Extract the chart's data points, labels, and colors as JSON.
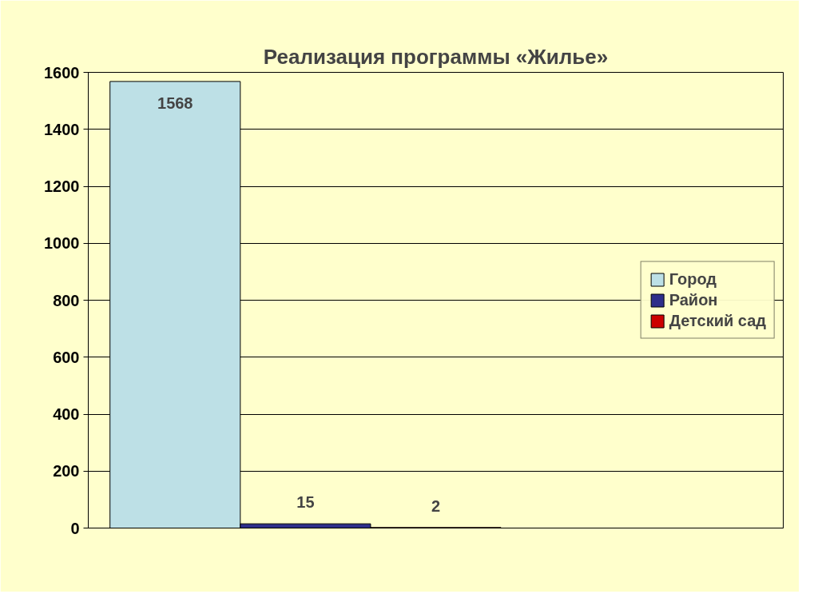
{
  "chart_data": {
    "type": "bar",
    "title": "Реализация программы «Жилье»",
    "categories": [
      null
    ],
    "series": [
      {
        "name": "Город",
        "color": "#bde0e6",
        "values": [
          1568
        ]
      },
      {
        "name": "Район",
        "color": "#2e2e8a",
        "values": [
          15
        ]
      },
      {
        "name": "Детский сад",
        "color": "#cc0000",
        "values": [
          2
        ]
      }
    ],
    "ylim": [
      0,
      1600
    ],
    "yticks": [
      0,
      200,
      400,
      600,
      800,
      1000,
      1200,
      1400,
      1600
    ],
    "grid": "y",
    "legend": "right",
    "data_labels": true,
    "tick_labels": "y"
  }
}
